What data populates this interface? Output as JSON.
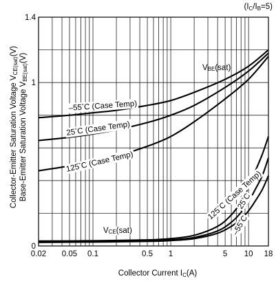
{
  "chart_data": {
    "type": "line",
    "condition": {
      "main": "(I",
      "sub1": "C",
      "mid": "/I",
      "sub2": "B",
      "end": "=5)"
    },
    "xlabel": "Collector Current I",
    "xlabel_sub": "C",
    "xlabel_unit": "(A)",
    "ylabel_line1": {
      "main": "Collector-Emitter Saturation Voltage V",
      "sub": "CE(sat)",
      "unit": "(V)"
    },
    "ylabel_line2": {
      "main": "Base-Emitter Saturation Voltage V",
      "sub": "BE(sat)",
      "unit": "(V)"
    },
    "x_scale": "log",
    "xlim": [
      0.02,
      18
    ],
    "ylim": [
      0,
      1.4
    ],
    "x_ticks": [
      {
        "value": 0.02,
        "label": "0.02"
      },
      {
        "value": 0.05,
        "label": "0.05"
      },
      {
        "value": 0.1,
        "label": "0.1"
      },
      {
        "value": 0.5,
        "label": "0.5"
      },
      {
        "value": 1,
        "label": "1"
      },
      {
        "value": 5,
        "label": "5"
      },
      {
        "value": 10,
        "label": "10"
      },
      {
        "value": 18,
        "label": "18"
      }
    ],
    "y_ticks": [
      {
        "value": 0,
        "label": "0"
      },
      {
        "value": 1,
        "label": "1"
      },
      {
        "value": 1.4,
        "label": "1.4"
      }
    ],
    "x_grid": [
      0.02,
      0.03,
      0.04,
      0.05,
      0.06,
      0.07,
      0.08,
      0.09,
      0.1,
      0.2,
      0.3,
      0.4,
      0.5,
      0.6,
      0.7,
      0.8,
      0.9,
      1,
      2,
      3,
      4,
      5,
      6,
      7,
      8,
      9,
      10
    ],
    "y_grid": [
      0.2,
      0.4,
      0.6,
      0.8,
      1.0,
      1.2
    ],
    "grid": true,
    "series": [
      {
        "key": "vbe_m55",
        "x": [
          0.02,
          0.05,
          0.1,
          0.2,
          0.5,
          1,
          2,
          5,
          10,
          18
        ],
        "y": [
          0.785,
          0.8,
          0.815,
          0.83,
          0.86,
          0.89,
          0.94,
          1.02,
          1.1,
          1.2
        ]
      },
      {
        "key": "vbe_25",
        "x": [
          0.02,
          0.05,
          0.1,
          0.2,
          0.5,
          1,
          2,
          5,
          10,
          18
        ],
        "y": [
          0.645,
          0.665,
          0.685,
          0.71,
          0.755,
          0.8,
          0.86,
          0.97,
          1.07,
          1.18
        ]
      },
      {
        "key": "vbe_125",
        "x": [
          0.02,
          0.05,
          0.1,
          0.2,
          0.5,
          1,
          2,
          5,
          10,
          18
        ],
        "y": [
          0.46,
          0.49,
          0.52,
          0.55,
          0.61,
          0.67,
          0.76,
          0.9,
          1.02,
          1.16
        ]
      },
      {
        "key": "vce_125",
        "x": [
          0.02,
          0.1,
          0.5,
          1,
          2,
          4,
          6,
          8,
          10,
          12,
          15,
          18
        ],
        "y": [
          0.03,
          0.032,
          0.037,
          0.045,
          0.065,
          0.12,
          0.19,
          0.27,
          0.36,
          0.45,
          0.56,
          0.67
        ]
      },
      {
        "key": "vce_25",
        "x": [
          0.02,
          0.1,
          0.5,
          1,
          2,
          4,
          6,
          8,
          10,
          12,
          15,
          18
        ],
        "y": [
          0.025,
          0.027,
          0.031,
          0.037,
          0.052,
          0.092,
          0.145,
          0.205,
          0.27,
          0.34,
          0.43,
          0.54
        ]
      },
      {
        "key": "vce_m55",
        "x": [
          0.02,
          0.1,
          0.5,
          1,
          2,
          4,
          6,
          8,
          10,
          12,
          15,
          18
        ],
        "y": [
          0.022,
          0.024,
          0.028,
          0.033,
          0.045,
          0.078,
          0.12,
          0.165,
          0.215,
          0.27,
          0.345,
          0.43
        ]
      }
    ],
    "annotations": [
      {
        "key": "vbe",
        "main": "V",
        "sub": "BE",
        "rest": "(sat)"
      },
      {
        "key": "vce",
        "main": "V",
        "sub": "CE",
        "rest": "(sat)"
      },
      {
        "key": "m55_case",
        "main": "–55",
        "deg": "°",
        "rest": "C (Case Temp)"
      },
      {
        "key": "t25_case",
        "main": "25",
        "deg": "°",
        "rest": "C (Case Temp)"
      },
      {
        "key": "t125_case",
        "main": "125",
        "deg": "°",
        "rest": "C (Case Temp)"
      },
      {
        "key": "t125_vce",
        "main": "125",
        "deg": "°",
        "rest": "C (Case Temp)"
      },
      {
        "key": "t25_vce",
        "main": "25",
        "deg": "°",
        "rest": "C"
      },
      {
        "key": "m55_vce",
        "main": "–55",
        "deg": "°",
        "rest": "C"
      }
    ]
  }
}
